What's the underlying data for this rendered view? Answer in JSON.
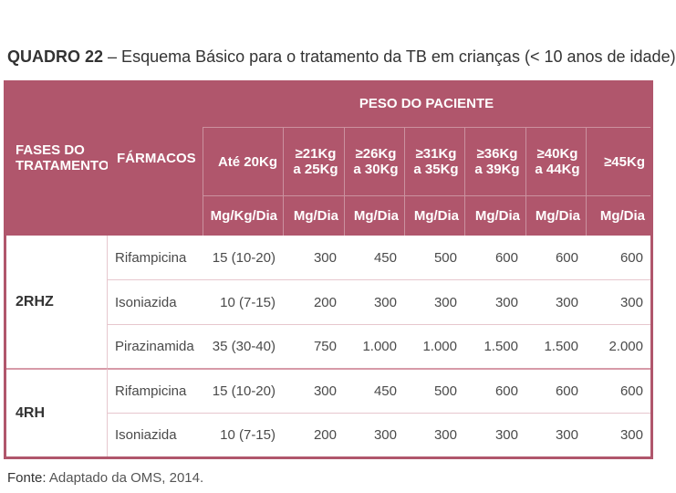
{
  "title": {
    "label": "QUADRO 22",
    "text": "– Esquema Básico para o tratamento da TB em crianças (< 10 anos de idade)"
  },
  "table": {
    "header": {
      "phase": "FASES DO TRATAMENTO",
      "drug": "FÁRMACOS",
      "group": "PESO DO PACIENTE",
      "weights": [
        "Até 20Kg",
        "≥21Kg a 25Kg",
        "≥26Kg a 30Kg",
        "≥31Kg a 35Kg",
        "≥36Kg a 39Kg",
        "≥40Kg a 44Kg",
        "≥45Kg"
      ],
      "units": [
        "Mg/Kg/Dia",
        "Mg/Dia",
        "Mg/Dia",
        "Mg/Dia",
        "Mg/Dia",
        "Mg/Dia",
        "Mg/Dia"
      ]
    },
    "groups": [
      {
        "phase": "2RHZ",
        "rows": [
          {
            "drug": "Rifampicina",
            "doses": [
              "15 (10-20)",
              "300",
              "450",
              "500",
              "600",
              "600",
              "600"
            ]
          },
          {
            "drug": "Isoniazida",
            "doses": [
              "10 (7-15)",
              "200",
              "300",
              "300",
              "300",
              "300",
              "300"
            ]
          },
          {
            "drug": "Pirazinamida",
            "doses": [
              "35 (30-40)",
              "750",
              "1.000",
              "1.000",
              "1.500",
              "1.500",
              "2.000"
            ]
          }
        ]
      },
      {
        "phase": "4RH",
        "rows": [
          {
            "drug": "Rifampicina",
            "doses": [
              "15 (10-20)",
              "300",
              "450",
              "500",
              "600",
              "600",
              "600"
            ]
          },
          {
            "drug": "Isoniazida",
            "doses": [
              "10 (7-15)",
              "200",
              "300",
              "300",
              "300",
              "300",
              "300"
            ]
          }
        ]
      }
    ]
  },
  "source": {
    "label": "Fonte:",
    "text": "Adaptado da OMS, 2014."
  }
}
